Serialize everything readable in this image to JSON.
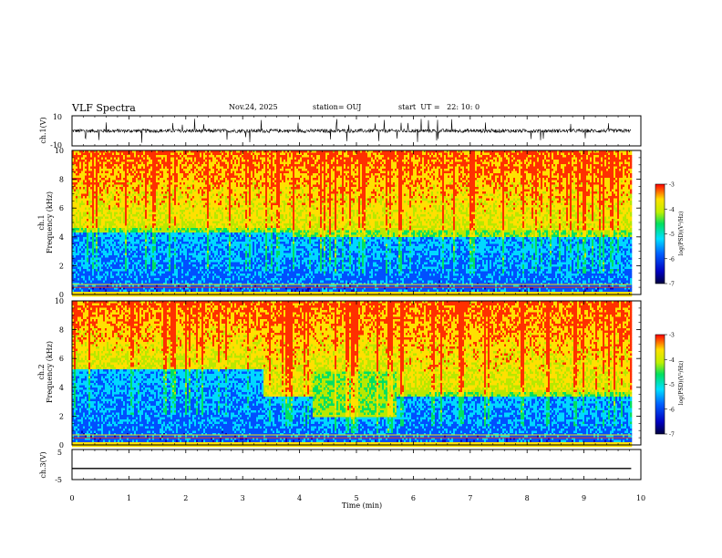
{
  "header": {
    "title": "VLF Spectra",
    "date": "Nov.24, 2025",
    "station": "station= OUJ",
    "start": "start  UT =   22: 10: 0"
  },
  "chart_data": [
    {
      "type": "line",
      "panel": "ch1-waveform",
      "ylabel": "ch.1(V)",
      "ylim": [
        -10,
        10
      ],
      "yticks": [
        "10",
        "-10"
      ],
      "baseline": 0,
      "description_values": {
        "typical_amplitude": 2,
        "spike_amplitude": 8
      }
    },
    {
      "type": "heatmap",
      "panel": "ch1-spectrogram",
      "ylabel_top": "ch.1",
      "ylabel": "Frequency (kHz)",
      "ylim": [
        0,
        10
      ],
      "yticks": [
        "0",
        "2",
        "4",
        "6",
        "8",
        "10"
      ],
      "xlim": [
        0,
        10
      ],
      "data_end_min": 9.83,
      "segments": [
        {
          "t0": 0.0,
          "t1": 3.9,
          "blue_top_khz": 4.3
        },
        {
          "t0": 3.9,
          "t1": 9.83,
          "blue_top_khz": 4.1
        }
      ],
      "colorbar": {
        "ticks": [
          "-3",
          "-4",
          "-5",
          "-6",
          "-7"
        ],
        "range": [
          -7,
          -3
        ],
        "label": "log(PSD)(V²/Hz)"
      }
    },
    {
      "type": "heatmap",
      "panel": "ch2-spectrogram",
      "ylabel_top": "ch.2",
      "ylabel": "Frequency (kHz)",
      "ylim": [
        0,
        10
      ],
      "yticks": [
        "0",
        "2",
        "4",
        "6",
        "8",
        "10"
      ],
      "xlim": [
        0,
        10
      ],
      "data_end_min": 9.83,
      "segments": [
        {
          "t0": 0.0,
          "t1": 3.35,
          "blue_top_khz": 5.3,
          "green_top_khz": 5.3
        },
        {
          "t0": 3.35,
          "t1": 4.2,
          "blue_top_khz": 3.5,
          "green_top_khz": 3.5
        },
        {
          "t0": 4.2,
          "t1": 5.7,
          "blue_top_khz": 2.2,
          "green_top_khz": 5.2
        },
        {
          "t0": 5.7,
          "t1": 9.83,
          "blue_top_khz": 3.5,
          "green_top_khz": 3.7
        }
      ],
      "colorbar": {
        "ticks": [
          "-3",
          "-4",
          "-5",
          "-6",
          "-7"
        ],
        "range": [
          -7,
          -3
        ],
        "label": "log(PSD)(V²/Hz)"
      }
    },
    {
      "type": "line",
      "panel": "ch3-waveform",
      "ylabel": "ch.3(V)",
      "ylim": [
        -5,
        5
      ],
      "yticks": [
        "5",
        "-5"
      ],
      "values_constant": -1.3
    }
  ],
  "x_axis": {
    "label": "Time  (min)",
    "range": [
      0,
      10
    ],
    "ticks": [
      "0",
      "1",
      "2",
      "3",
      "4",
      "5",
      "6",
      "7",
      "8",
      "9",
      "10"
    ]
  },
  "colors": {
    "palette": [
      "#000040",
      "#0000c0",
      "#0050ff",
      "#00d8ff",
      "#00e060",
      "#b8e800",
      "#ffe000",
      "#ff3000"
    ],
    "axis": "#000000",
    "background": "#ffffff"
  }
}
